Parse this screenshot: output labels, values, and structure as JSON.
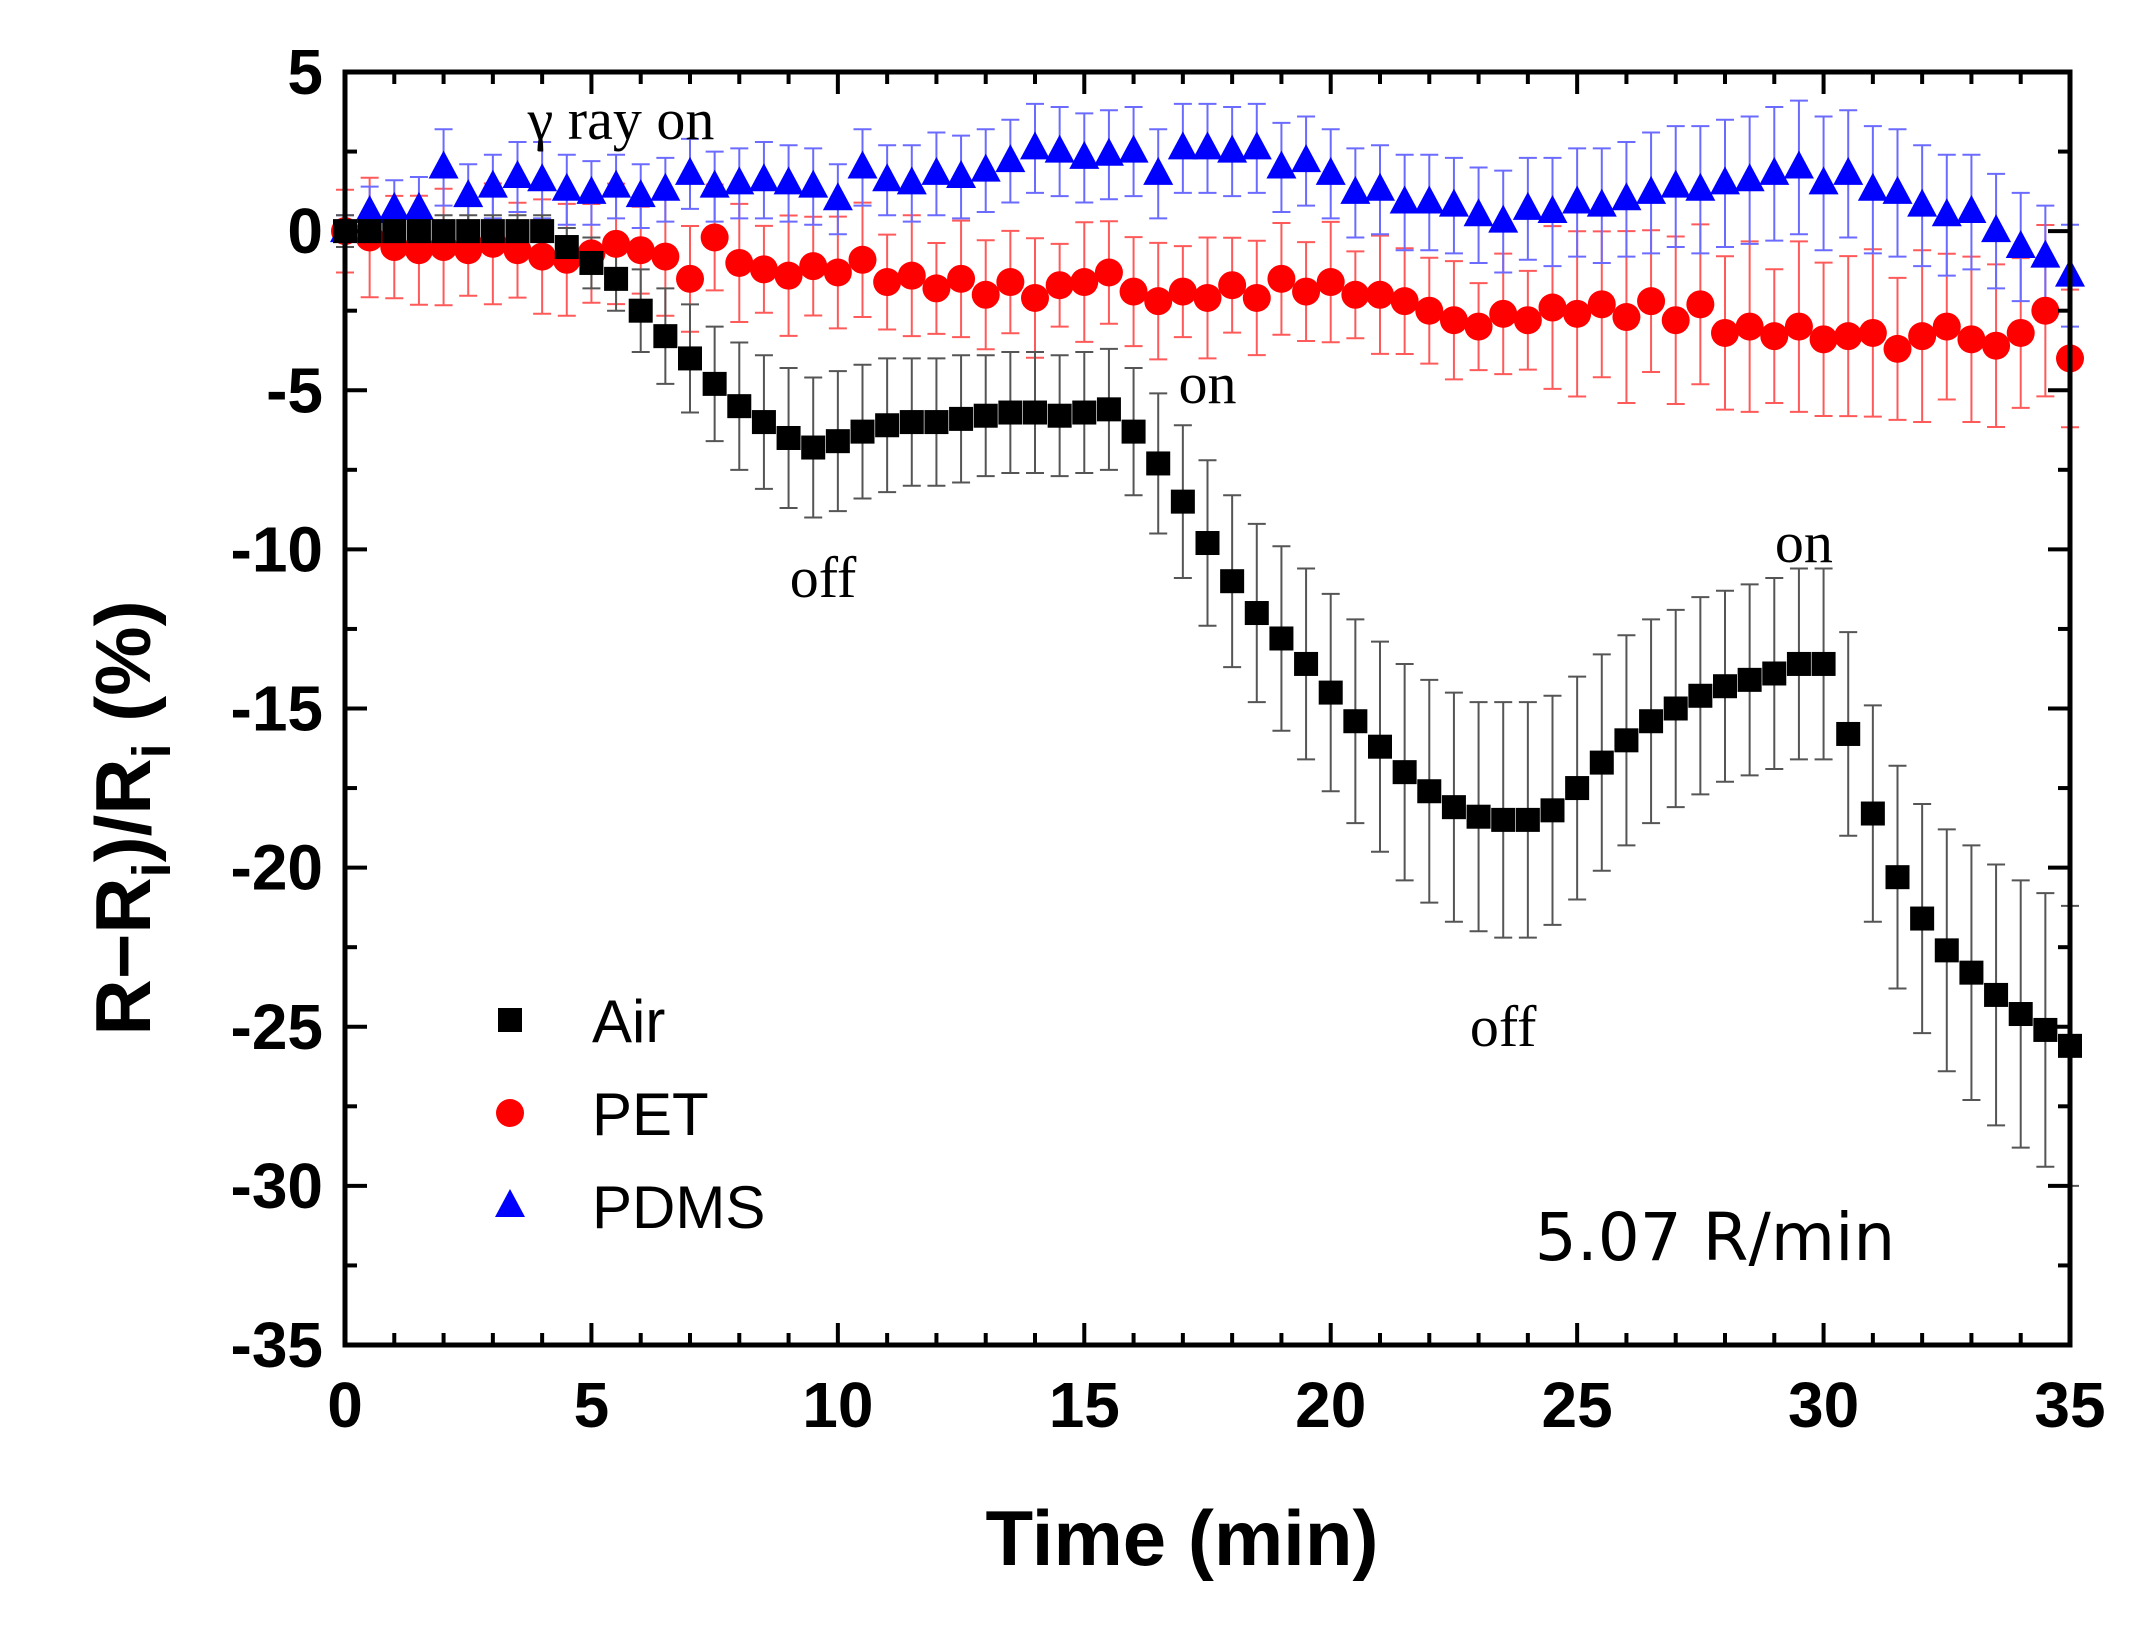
{
  "chart_data": {
    "type": "scatter",
    "title": "",
    "xlabel": "Time (min)",
    "ylabel_main": "R−R",
    "ylabel_sub": "i",
    "ylabel_mid": ")/R",
    "ylabel_sub2": "i",
    "ylabel_tail": " (%)",
    "xlim": [
      0,
      35
    ],
    "ylim": [
      -35,
      5
    ],
    "x_ticks": [
      0,
      5,
      10,
      15,
      20,
      25,
      30,
      35
    ],
    "y_ticks": [
      5,
      0,
      -5,
      -10,
      -15,
      -20,
      -25,
      -30,
      -35
    ],
    "x_tick_labels": [
      "0",
      "5",
      "10",
      "15",
      "20",
      "25",
      "30",
      "35"
    ],
    "y_tick_labels": [
      "5",
      "0",
      "-5",
      "-10",
      "-15",
      "-20",
      "-25",
      "-30",
      "-35"
    ],
    "legend_position": "bottom-left",
    "rate_label": "5.07 R/min",
    "annotations": [
      {
        "text": "γ ray on",
        "x": 5.6,
        "y": 2.9
      },
      {
        "text": "off",
        "x": 9.7,
        "y": -11.5
      },
      {
        "text": "on",
        "x": 17.5,
        "y": -5.4
      },
      {
        "text": "off",
        "x": 23.5,
        "y": -25.6
      },
      {
        "text": "on",
        "x": 29.6,
        "y": -10.4
      }
    ],
    "series": [
      {
        "name": "Air",
        "color": "#000000",
        "marker": "square",
        "x": [
          0,
          0.5,
          1,
          1.5,
          2,
          2.5,
          3,
          3.5,
          4,
          4.5,
          5,
          5.5,
          6,
          6.5,
          7,
          7.5,
          8,
          8.5,
          9,
          9.5,
          10,
          10.5,
          11,
          11.5,
          12,
          12.5,
          13,
          13.5,
          14,
          14.5,
          15,
          15.5,
          16,
          16.5,
          17,
          17.5,
          18,
          18.5,
          19,
          19.5,
          20,
          20.5,
          21,
          21.5,
          22,
          22.5,
          23,
          23.5,
          24,
          24.5,
          25,
          25.5,
          26,
          26.5,
          27,
          27.5,
          28,
          28.5,
          29,
          29.5,
          30,
          30.5,
          31,
          31.5,
          32,
          32.5,
          33,
          33.5,
          34,
          34.5,
          35
        ],
        "y": [
          0,
          0,
          0,
          0,
          0,
          0,
          0,
          0,
          0,
          -0.5,
          -1,
          -1.5,
          -2.5,
          -3.3,
          -4,
          -4.8,
          -5.5,
          -6,
          -6.5,
          -6.8,
          -6.6,
          -6.3,
          -6.1,
          -6,
          -6,
          -5.9,
          -5.8,
          -5.7,
          -5.7,
          -5.8,
          -5.7,
          -5.6,
          -6.3,
          -7.3,
          -8.5,
          -9.8,
          -11,
          -12,
          -12.8,
          -13.6,
          -14.5,
          -15.4,
          -16.2,
          -17,
          -17.6,
          -18.1,
          -18.4,
          -18.5,
          -18.5,
          -18.2,
          -17.5,
          -16.7,
          -16,
          -15.4,
          -15,
          -14.6,
          -14.3,
          -14.1,
          -13.9,
          -13.6,
          -13.6,
          -15.8,
          -18.3,
          -20.3,
          -21.6,
          -22.6,
          -23.3,
          -24,
          -24.6,
          -25.1,
          -25.6
        ],
        "err": [
          0.5,
          0.5,
          0.5,
          0.5,
          0.5,
          0.5,
          0.5,
          0.5,
          0.5,
          0.6,
          0.8,
          1,
          1.3,
          1.5,
          1.7,
          1.8,
          2,
          2.1,
          2.2,
          2.2,
          2.2,
          2.1,
          2.1,
          2,
          2,
          2,
          1.9,
          1.9,
          1.9,
          1.9,
          1.9,
          1.9,
          2,
          2.2,
          2.4,
          2.6,
          2.7,
          2.8,
          2.9,
          3,
          3.1,
          3.2,
          3.3,
          3.4,
          3.5,
          3.6,
          3.6,
          3.7,
          3.7,
          3.6,
          3.5,
          3.4,
          3.3,
          3.2,
          3.1,
          3.1,
          3,
          3,
          3,
          3,
          3,
          3.2,
          3.4,
          3.5,
          3.6,
          3.8,
          4,
          4.1,
          4.2,
          4.3,
          4.4
        ]
      },
      {
        "name": "PET",
        "color": "#ff0000",
        "marker": "circle",
        "x": [
          0,
          0.5,
          1,
          1.5,
          2,
          2.5,
          3,
          3.5,
          4,
          4.5,
          5,
          5.5,
          6,
          6.5,
          7,
          7.5,
          8,
          8.5,
          9,
          9.5,
          10,
          10.5,
          11,
          11.5,
          12,
          12.5,
          13,
          13.5,
          14,
          14.5,
          15,
          15.5,
          16,
          16.5,
          17,
          17.5,
          18,
          18.5,
          19,
          19.5,
          20,
          20.5,
          21,
          21.5,
          22,
          22.5,
          23,
          23.5,
          24,
          24.5,
          25,
          25.5,
          26,
          26.5,
          27,
          27.5,
          28,
          28.5,
          29,
          29.5,
          30,
          30.5,
          31,
          31.5,
          32,
          32.5,
          33,
          33.5,
          34,
          34.5,
          35
        ],
        "y": [
          0,
          -0.2,
          -0.5,
          -0.6,
          -0.5,
          -0.6,
          -0.4,
          -0.6,
          -0.8,
          -0.9,
          -0.7,
          -0.4,
          -0.6,
          -0.8,
          -1.5,
          -0.2,
          -1,
          -1.2,
          -1.4,
          -1.1,
          -1.3,
          -0.9,
          -1.6,
          -1.4,
          -1.8,
          -1.5,
          -2,
          -1.6,
          -2.1,
          -1.7,
          -1.6,
          -1.3,
          -1.9,
          -2.2,
          -1.9,
          -2.1,
          -1.7,
          -2.1,
          -1.5,
          -1.9,
          -1.6,
          -2,
          -2,
          -2.2,
          -2.5,
          -2.8,
          -3,
          -2.6,
          -2.8,
          -2.4,
          -2.6,
          -2.3,
          -2.7,
          -2.2,
          -2.8,
          -2.3,
          -3.2,
          -3,
          -3.3,
          -3,
          -3.4,
          -3.3,
          -3.2,
          -3.7,
          -3.3,
          -3,
          -3.4,
          -3.6,
          -3.2,
          -2.5,
          -4
        ]
      },
      {
        "name": "PDMS",
        "color": "#0000ff",
        "marker": "triangle",
        "x": [
          0,
          0.5,
          1,
          1.5,
          2,
          2.5,
          3,
          3.5,
          4,
          4.5,
          5,
          5.5,
          6,
          6.5,
          7,
          7.5,
          8,
          8.5,
          9,
          9.5,
          10,
          10.5,
          11,
          11.5,
          12,
          12.5,
          13,
          13.5,
          14,
          14.5,
          15,
          15.5,
          16,
          16.5,
          17,
          17.5,
          18,
          18.5,
          19,
          19.5,
          20,
          20.5,
          21,
          21.5,
          22,
          22.5,
          23,
          23.5,
          24,
          24.5,
          25,
          25.5,
          26,
          26.5,
          27,
          27.5,
          28,
          28.5,
          29,
          29.5,
          30,
          30.5,
          31,
          31.5,
          32,
          32.5,
          33,
          33.5,
          34,
          34.5,
          35
        ],
        "y": [
          0,
          0.6,
          0.7,
          0.7,
          2,
          1.1,
          1.4,
          1.7,
          1.6,
          1.3,
          1.2,
          1.4,
          1.1,
          1.3,
          1.8,
          1.4,
          1.5,
          1.6,
          1.5,
          1.4,
          1,
          2,
          1.6,
          1.5,
          1.8,
          1.7,
          1.9,
          2.2,
          2.6,
          2.5,
          2.3,
          2.4,
          2.5,
          1.8,
          2.6,
          2.6,
          2.5,
          2.6,
          2,
          2.2,
          1.8,
          1.2,
          1.3,
          0.9,
          0.9,
          0.8,
          0.5,
          0.3,
          0.7,
          0.6,
          0.9,
          0.8,
          1,
          1.2,
          1.4,
          1.3,
          1.5,
          1.6,
          1.8,
          2,
          1.5,
          1.8,
          1.3,
          1.2,
          0.8,
          0.5,
          0.6,
          0,
          -0.5,
          -0.8,
          -1.4
        ],
        "err": [
          0.5,
          0.8,
          0.9,
          1,
          1.2,
          1,
          1,
          1.1,
          1.2,
          1.1,
          1,
          1,
          1,
          1,
          1.1,
          1.1,
          1.1,
          1.2,
          1.2,
          1.2,
          1.1,
          1.2,
          1.1,
          1.2,
          1.3,
          1.3,
          1.3,
          1.3,
          1.4,
          1.4,
          1.4,
          1.4,
          1.4,
          1.4,
          1.4,
          1.4,
          1.4,
          1.4,
          1.4,
          1.4,
          1.4,
          1.4,
          1.4,
          1.5,
          1.5,
          1.5,
          1.5,
          1.6,
          1.6,
          1.7,
          1.7,
          1.8,
          1.8,
          1.9,
          1.9,
          2,
          2,
          2,
          2.1,
          2.1,
          2.1,
          2,
          2,
          2,
          1.9,
          1.9,
          1.8,
          1.8,
          1.7,
          1.6,
          1.6
        ]
      }
    ]
  }
}
